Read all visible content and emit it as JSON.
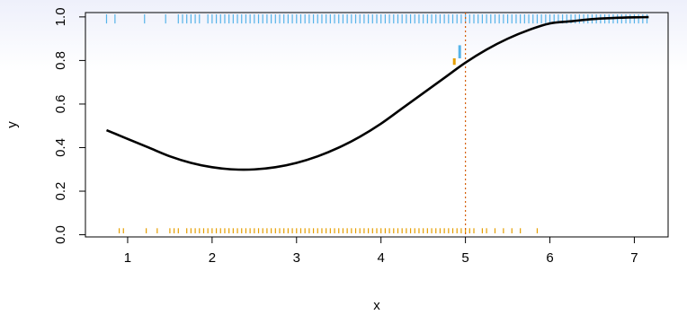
{
  "chart_data": {
    "type": "line",
    "title": "",
    "xlabel": "x",
    "ylabel": "y",
    "xlim": [
      0.5,
      7.4
    ],
    "ylim": [
      -0.01,
      1.02
    ],
    "x_ticks": [
      "1",
      "2",
      "3",
      "4",
      "5",
      "6",
      "7"
    ],
    "y_ticks": [
      "0.0",
      "0.2",
      "0.4",
      "0.6",
      "0.8",
      "1.0"
    ],
    "grid": false,
    "colors": {
      "curve": "#000000",
      "rug_top": "#56b4e9",
      "rug_bottom": "#e69f00",
      "vline": "#d55e00"
    },
    "series": [
      {
        "x": [
          0.75,
          1.0,
          1.25,
          1.5,
          1.75,
          2.0,
          2.25,
          2.5,
          2.75,
          3.0,
          3.25,
          3.5,
          3.75,
          4.0,
          4.25,
          4.5,
          4.75,
          5.0,
          5.25,
          5.5,
          5.75,
          6.0,
          6.25,
          6.5,
          6.75,
          7.0,
          7.17
        ],
        "values": [
          0.48,
          0.44,
          0.4,
          0.36,
          0.33,
          0.31,
          0.3,
          0.3,
          0.31,
          0.33,
          0.36,
          0.4,
          0.45,
          0.51,
          0.58,
          0.65,
          0.72,
          0.79,
          0.85,
          0.9,
          0.94,
          0.97,
          0.98,
          0.99,
          0.995,
          0.998,
          0.999
        ]
      }
    ],
    "rug_top_x": [
      0.75,
      0.85,
      1.2,
      1.45,
      1.6,
      1.65,
      1.7,
      1.75,
      1.8,
      1.85,
      1.95,
      2.0,
      2.05,
      2.1,
      2.15,
      2.2,
      2.25,
      2.3,
      2.35,
      2.4,
      2.45,
      2.5,
      2.55,
      2.6,
      2.65,
      2.7,
      2.75,
      2.8,
      2.85,
      2.9,
      2.95,
      3.0,
      3.05,
      3.1,
      3.15,
      3.2,
      3.25,
      3.3,
      3.35,
      3.4,
      3.45,
      3.5,
      3.55,
      3.6,
      3.65,
      3.7,
      3.75,
      3.8,
      3.85,
      3.9,
      3.95,
      4.0,
      4.05,
      4.1,
      4.15,
      4.2,
      4.25,
      4.3,
      4.35,
      4.4,
      4.45,
      4.5,
      4.55,
      4.6,
      4.65,
      4.7,
      4.75,
      4.8,
      4.85,
      4.9,
      4.95,
      5.0,
      5.05,
      5.1,
      5.15,
      5.2,
      5.25,
      5.3,
      5.35,
      5.4,
      5.45,
      5.5,
      5.55,
      5.6,
      5.65,
      5.7,
      5.75,
      5.8,
      5.85,
      5.9,
      5.95,
      6.0,
      6.05,
      6.1,
      6.15,
      6.2,
      6.25,
      6.3,
      6.35,
      6.4,
      6.45,
      6.5,
      6.55,
      6.6,
      6.65,
      6.7,
      6.75,
      6.8,
      6.85,
      6.9,
      6.95,
      7.0,
      7.05,
      7.1,
      7.15
    ],
    "rug_bottom_x": [
      0.9,
      0.95,
      1.22,
      1.35,
      1.5,
      1.55,
      1.6,
      1.7,
      1.75,
      1.8,
      1.85,
      1.9,
      1.95,
      2.0,
      2.05,
      2.1,
      2.15,
      2.2,
      2.25,
      2.3,
      2.35,
      2.4,
      2.45,
      2.5,
      2.55,
      2.6,
      2.65,
      2.7,
      2.75,
      2.8,
      2.85,
      2.9,
      2.95,
      3.0,
      3.05,
      3.1,
      3.15,
      3.2,
      3.25,
      3.3,
      3.35,
      3.4,
      3.45,
      3.5,
      3.55,
      3.6,
      3.65,
      3.7,
      3.75,
      3.8,
      3.85,
      3.9,
      3.95,
      4.0,
      4.05,
      4.1,
      4.15,
      4.2,
      4.25,
      4.3,
      4.35,
      4.4,
      4.45,
      4.5,
      4.55,
      4.6,
      4.65,
      4.7,
      4.75,
      4.8,
      4.85,
      4.9,
      4.95,
      5.0,
      5.05,
      5.1,
      5.2,
      5.25,
      5.35,
      5.45,
      5.55,
      5.65,
      5.85
    ],
    "vline_x": 5.0,
    "marker_x": 4.9,
    "marker_bottom_range": [
      0.78,
      0.81
    ],
    "marker_top_range": [
      0.81,
      0.87
    ]
  }
}
